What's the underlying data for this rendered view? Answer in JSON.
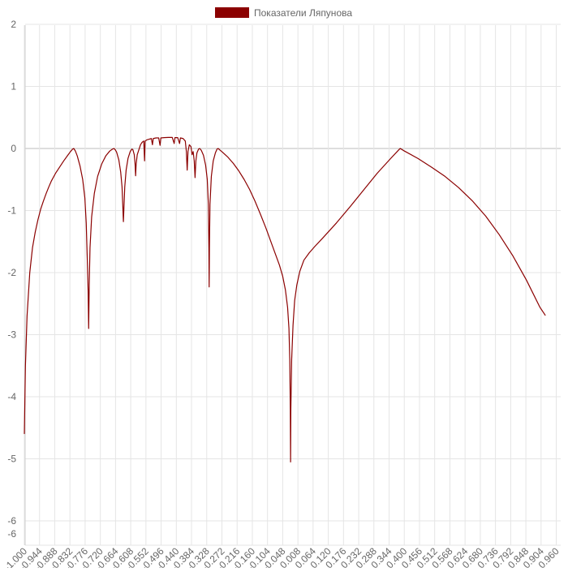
{
  "chart_data": {
    "type": "line",
    "legend": {
      "position": "top",
      "entries": [
        "Показатели Ляпунова"
      ]
    },
    "series": [
      {
        "name": "Показатели Ляпунова",
        "color": "#8b0000",
        "points": [
          [
            -1.0,
            -4.6
          ],
          [
            -0.996,
            -3.5
          ],
          [
            -0.99,
            -2.7
          ],
          [
            -0.98,
            -2.0
          ],
          [
            -0.97,
            -1.6
          ],
          [
            -0.96,
            -1.35
          ],
          [
            -0.95,
            -1.15
          ],
          [
            -0.94,
            -0.98
          ],
          [
            -0.93,
            -0.85
          ],
          [
            -0.92,
            -0.73
          ],
          [
            -0.91,
            -0.62
          ],
          [
            -0.9,
            -0.52
          ],
          [
            -0.885,
            -0.4
          ],
          [
            -0.87,
            -0.3
          ],
          [
            -0.855,
            -0.2
          ],
          [
            -0.84,
            -0.11
          ],
          [
            -0.83,
            -0.05
          ],
          [
            -0.822,
            -0.01
          ],
          [
            -0.818,
            0.0
          ],
          [
            -0.812,
            -0.04
          ],
          [
            -0.805,
            -0.12
          ],
          [
            -0.795,
            -0.28
          ],
          [
            -0.785,
            -0.5
          ],
          [
            -0.777,
            -0.8
          ],
          [
            -0.772,
            -1.2
          ],
          [
            -0.768,
            -1.8
          ],
          [
            -0.765,
            -2.3
          ],
          [
            -0.763,
            -2.9
          ],
          [
            -0.761,
            -2.2
          ],
          [
            -0.758,
            -1.6
          ],
          [
            -0.752,
            -1.1
          ],
          [
            -0.742,
            -0.72
          ],
          [
            -0.73,
            -0.45
          ],
          [
            -0.715,
            -0.25
          ],
          [
            -0.7,
            -0.12
          ],
          [
            -0.685,
            -0.04
          ],
          [
            -0.675,
            -0.01
          ],
          [
            -0.67,
            0.0
          ],
          [
            -0.665,
            -0.02
          ],
          [
            -0.66,
            -0.06
          ],
          [
            -0.652,
            -0.18
          ],
          [
            -0.645,
            -0.38
          ],
          [
            -0.64,
            -0.62
          ],
          [
            -0.637,
            -0.95
          ],
          [
            -0.635,
            -1.18
          ],
          [
            -0.633,
            -0.95
          ],
          [
            -0.63,
            -0.62
          ],
          [
            -0.625,
            -0.35
          ],
          [
            -0.618,
            -0.16
          ],
          [
            -0.61,
            -0.05
          ],
          [
            -0.604,
            -0.01
          ],
          [
            -0.6,
            -0.02
          ],
          [
            -0.595,
            -0.1
          ],
          [
            -0.592,
            -0.25
          ],
          [
            -0.59,
            -0.44
          ],
          [
            -0.588,
            -0.25
          ],
          [
            -0.584,
            -0.1
          ],
          [
            -0.578,
            -0.02
          ],
          [
            -0.572,
            0.06
          ],
          [
            -0.566,
            0.1
          ],
          [
            -0.56,
            0.12
          ],
          [
            -0.557,
            -0.2
          ],
          [
            -0.555,
            0.12
          ],
          [
            -0.548,
            0.14
          ],
          [
            -0.54,
            0.15
          ],
          [
            -0.532,
            0.16
          ],
          [
            -0.528,
            0.06
          ],
          [
            -0.525,
            0.16
          ],
          [
            -0.515,
            0.17
          ],
          [
            -0.505,
            0.17
          ],
          [
            -0.5,
            0.05
          ],
          [
            -0.497,
            0.17
          ],
          [
            -0.485,
            0.175
          ],
          [
            -0.47,
            0.178
          ],
          [
            -0.455,
            0.178
          ],
          [
            -0.448,
            0.08
          ],
          [
            -0.445,
            0.176
          ],
          [
            -0.435,
            0.175
          ],
          [
            -0.428,
            0.08
          ],
          [
            -0.425,
            0.17
          ],
          [
            -0.415,
            0.16
          ],
          [
            -0.407,
            0.12
          ],
          [
            -0.403,
            -0.05
          ],
          [
            -0.4,
            -0.35
          ],
          [
            -0.397,
            -0.05
          ],
          [
            -0.392,
            0.06
          ],
          [
            -0.386,
            0.03
          ],
          [
            -0.382,
            -0.1
          ],
          [
            -0.378,
            -0.05
          ],
          [
            -0.374,
            -0.2
          ],
          [
            -0.371,
            -0.47
          ],
          [
            -0.368,
            -0.2
          ],
          [
            -0.364,
            -0.07
          ],
          [
            -0.358,
            -0.01
          ],
          [
            -0.354,
            0.0
          ],
          [
            -0.348,
            -0.03
          ],
          [
            -0.34,
            -0.11
          ],
          [
            -0.332,
            -0.27
          ],
          [
            -0.326,
            -0.5
          ],
          [
            -0.322,
            -0.9
          ],
          [
            -0.32,
            -1.6
          ],
          [
            -0.319,
            -2.23
          ],
          [
            -0.318,
            -1.6
          ],
          [
            -0.316,
            -0.9
          ],
          [
            -0.311,
            -0.45
          ],
          [
            -0.304,
            -0.2
          ],
          [
            -0.296,
            -0.07
          ],
          [
            -0.29,
            -0.01
          ],
          [
            -0.286,
            0.0
          ],
          [
            -0.278,
            -0.03
          ],
          [
            -0.27,
            -0.06
          ],
          [
            -0.25,
            -0.14
          ],
          [
            -0.23,
            -0.24
          ],
          [
            -0.21,
            -0.36
          ],
          [
            -0.19,
            -0.5
          ],
          [
            -0.17,
            -0.66
          ],
          [
            -0.15,
            -0.85
          ],
          [
            -0.13,
            -1.06
          ],
          [
            -0.11,
            -1.28
          ],
          [
            -0.09,
            -1.52
          ],
          [
            -0.075,
            -1.7
          ],
          [
            -0.06,
            -1.88
          ],
          [
            -0.048,
            -2.06
          ],
          [
            -0.038,
            -2.28
          ],
          [
            -0.03,
            -2.56
          ],
          [
            -0.025,
            -2.9
          ],
          [
            -0.022,
            -3.4
          ],
          [
            -0.02,
            -4.2
          ],
          [
            -0.019,
            -5.05
          ],
          [
            -0.018,
            -4.2
          ],
          [
            -0.015,
            -3.4
          ],
          [
            -0.01,
            -2.85
          ],
          [
            -0.004,
            -2.45
          ],
          [
            0.004,
            -2.2
          ],
          [
            0.015,
            -1.98
          ],
          [
            0.03,
            -1.8
          ],
          [
            0.05,
            -1.68
          ],
          [
            0.07,
            -1.58
          ],
          [
            0.1,
            -1.44
          ],
          [
            0.15,
            -1.2
          ],
          [
            0.2,
            -0.94
          ],
          [
            0.25,
            -0.67
          ],
          [
            0.3,
            -0.4
          ],
          [
            0.35,
            -0.16
          ],
          [
            0.38,
            -0.02
          ],
          [
            0.385,
            0.0
          ],
          [
            0.4,
            -0.04
          ],
          [
            0.45,
            -0.16
          ],
          [
            0.5,
            -0.3
          ],
          [
            0.55,
            -0.45
          ],
          [
            0.6,
            -0.63
          ],
          [
            0.65,
            -0.84
          ],
          [
            0.7,
            -1.09
          ],
          [
            0.75,
            -1.39
          ],
          [
            0.8,
            -1.73
          ],
          [
            0.85,
            -2.12
          ],
          [
            0.9,
            -2.56
          ],
          [
            0.92,
            -2.69
          ]
        ]
      }
    ],
    "x_tick_labels": [
      "-1.000",
      "-0.944",
      "-0.888",
      "-0.832",
      "-0.776",
      "-0.720",
      "-0.664",
      "-0.608",
      "-0.552",
      "-0.496",
      "-0.440",
      "-0.384",
      "-0.328",
      "-0.272",
      "-0.216",
      "-0.160",
      "-0.104",
      "-0.048",
      "0.008",
      "0.064",
      "0.120",
      "0.176",
      "0.232",
      "0.288",
      "0.344",
      "0.400",
      "0.456",
      "0.512",
      "0.568",
      "0.624",
      "0.680",
      "0.736",
      "0.792",
      "0.848",
      "0.904",
      "0.960"
    ],
    "y_tick_labels": [
      "2",
      "1",
      "0",
      "-1",
      "-2",
      "-3",
      "-4",
      "-5",
      "-6",
      "-6"
    ],
    "xlim": [
      -1.0,
      0.92
    ],
    "ylim": [
      -6.2,
      2
    ],
    "grid": true
  }
}
